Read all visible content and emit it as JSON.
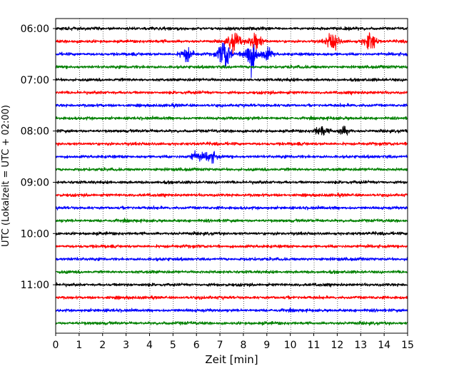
{
  "chart_data": {
    "type": "line",
    "title": "",
    "xlabel": "Zeit  [min]",
    "ylabel": "UTC (Lokalzeit = UTC + 02:00)",
    "xlim": [
      0,
      15
    ],
    "x_ticks": [
      0,
      1,
      2,
      3,
      4,
      5,
      6,
      7,
      8,
      9,
      10,
      11,
      12,
      13,
      14,
      15
    ],
    "y_tick_labels": [
      "06:00",
      "07:00",
      "08:00",
      "09:00",
      "10:00",
      "11:00"
    ],
    "vertical_grid": true,
    "grid_style": "dotted",
    "trace_colors": [
      "#000000",
      "#ff0000",
      "#0000ff",
      "#008000"
    ],
    "trace_interval_minutes": 15,
    "traces": [
      {
        "start": "06:00",
        "color": "#000000",
        "events": []
      },
      {
        "start": "06:15",
        "color": "#ff0000",
        "events": [
          {
            "t": 7.6,
            "amp": 4.5
          },
          {
            "t": 8.5,
            "amp": 4.0
          },
          {
            "t": 11.8,
            "amp": 3.8
          },
          {
            "t": 13.4,
            "amp": 4.0
          }
        ]
      },
      {
        "start": "06:30",
        "color": "#0000ff",
        "events": [
          {
            "t": 5.6,
            "amp": 3.0
          },
          {
            "t": 7.2,
            "amp": 6.5
          },
          {
            "t": 8.3,
            "amp": 7.0
          },
          {
            "t": 9.0,
            "amp": 2.5
          }
        ]
      },
      {
        "start": "06:45",
        "color": "#008000",
        "events": []
      },
      {
        "start": "07:00",
        "color": "#000000",
        "events": []
      },
      {
        "start": "07:15",
        "color": "#ff0000",
        "events": []
      },
      {
        "start": "07:30",
        "color": "#0000ff",
        "events": []
      },
      {
        "start": "07:45",
        "color": "#008000",
        "events": []
      },
      {
        "start": "08:00",
        "color": "#000000",
        "events": [
          {
            "t": 11.3,
            "amp": 2.2
          },
          {
            "t": 12.3,
            "amp": 1.6
          }
        ]
      },
      {
        "start": "08:15",
        "color": "#ff0000",
        "events": []
      },
      {
        "start": "08:30",
        "color": "#0000ff",
        "events": [
          {
            "t": 6.0,
            "amp": 2.0
          },
          {
            "t": 6.6,
            "amp": 2.4
          }
        ]
      },
      {
        "start": "08:45",
        "color": "#008000",
        "events": []
      },
      {
        "start": "09:00",
        "color": "#000000",
        "events": []
      },
      {
        "start": "09:15",
        "color": "#ff0000",
        "events": []
      },
      {
        "start": "09:30",
        "color": "#0000ff",
        "events": []
      },
      {
        "start": "09:45",
        "color": "#008000",
        "events": []
      },
      {
        "start": "10:00",
        "color": "#000000",
        "events": []
      },
      {
        "start": "10:15",
        "color": "#ff0000",
        "events": []
      },
      {
        "start": "10:30",
        "color": "#0000ff",
        "events": []
      },
      {
        "start": "10:45",
        "color": "#008000",
        "events": []
      },
      {
        "start": "11:00",
        "color": "#000000",
        "events": []
      },
      {
        "start": "11:15",
        "color": "#ff0000",
        "events": []
      },
      {
        "start": "11:30",
        "color": "#0000ff",
        "events": []
      },
      {
        "start": "11:45",
        "color": "#008000",
        "events": []
      }
    ]
  }
}
